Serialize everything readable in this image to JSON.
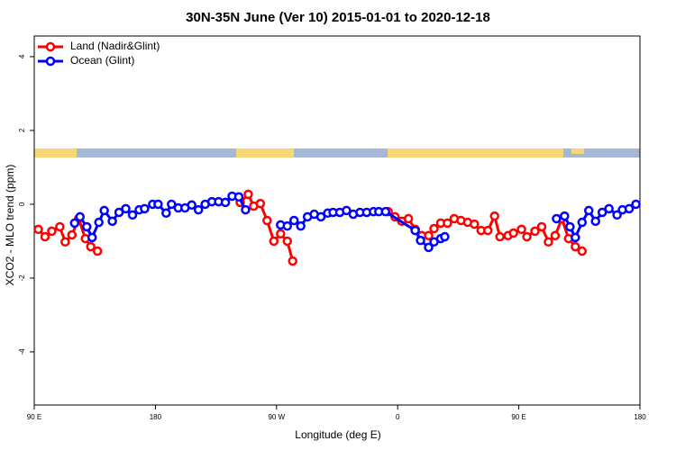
{
  "chart_data": {
    "type": "line",
    "title": "30N-35N June (Ver 10)   2015-01-01 to 2020-12-18",
    "x_label": "Longitude (deg E)",
    "y_label": "XCO2 - MLO trend (ppm)",
    "xlim": [
      90,
      540
    ],
    "ylim": [
      -5.44,
      4.56
    ],
    "xticks": [
      {
        "value": 90,
        "label": "90 E"
      },
      180,
      {
        "value": 270,
        "label": "90 W"
      },
      {
        "value": 360,
        "label": "0"
      },
      {
        "value": 450,
        "label": "90 E"
      },
      {
        "value": 540,
        "label": "180"
      }
    ],
    "yticks": [
      -4,
      -2,
      0,
      2,
      4
    ],
    "legend": "top-left",
    "series": [
      {
        "name": "Land (Nadir&Glint)",
        "color": "#ff0000",
        "x": [
          93,
          98,
          103,
          109,
          113,
          118,
          123,
          128,
          132,
          137,
          null,
          243,
          249,
          253,
          258,
          263,
          268,
          273,
          278,
          282,
          null,
          353,
          358,
          363,
          368,
          373,
          378,
          383,
          387,
          392,
          397,
          402,
          407,
          412,
          417,
          422,
          427,
          432,
          436,
          442,
          446,
          452,
          456,
          462,
          467,
          472,
          477,
          482,
          487,
          492,
          497
        ],
        "values": [
          -0.68,
          -0.88,
          -0.73,
          -0.61,
          -1.02,
          -0.83,
          -0.39,
          -0.93,
          -1.15,
          -1.27,
          null,
          0.05,
          0.27,
          -0.05,
          0.02,
          -0.44,
          -1.0,
          -0.8,
          -1.0,
          -1.54,
          null,
          -0.2,
          -0.34,
          -0.46,
          -0.39,
          -0.68,
          -0.85,
          -0.85,
          -0.66,
          -0.51,
          -0.51,
          -0.39,
          -0.44,
          -0.49,
          -0.54,
          -0.71,
          -0.71,
          -0.32,
          -0.88,
          -0.85,
          -0.78,
          -0.68,
          -0.88,
          -0.73,
          -0.61,
          -1.02,
          -0.85,
          -0.39,
          -0.93,
          -1.15,
          -1.27
        ]
      },
      {
        "name": "Ocean (Glint)",
        "color": "#0000ff",
        "x": [
          120,
          124,
          129,
          133,
          138,
          142,
          148,
          153,
          158,
          163,
          168,
          172,
          178,
          182,
          188,
          192,
          197,
          202,
          207,
          212,
          217,
          222,
          227,
          232,
          237,
          242,
          247,
          null,
          273,
          278,
          283,
          288,
          293,
          298,
          303,
          308,
          312,
          317,
          322,
          327,
          332,
          337,
          342,
          346,
          351,
          373,
          377,
          383,
          387,
          392,
          395,
          null,
          478,
          484,
          488,
          492,
          497,
          502,
          507,
          512,
          517,
          523,
          527,
          532,
          537
        ],
        "values": [
          -0.51,
          -0.34,
          -0.61,
          -0.9,
          -0.49,
          -0.17,
          -0.46,
          -0.22,
          -0.12,
          -0.29,
          -0.15,
          -0.12,
          0,
          0,
          -0.24,
          0,
          -0.1,
          -0.1,
          -0.02,
          -0.15,
          0,
          0.07,
          0.07,
          0.05,
          0.22,
          0.2,
          -0.15,
          null,
          -0.56,
          -0.59,
          -0.44,
          -0.59,
          -0.34,
          -0.27,
          -0.34,
          -0.24,
          -0.22,
          -0.22,
          -0.17,
          -0.27,
          -0.22,
          -0.22,
          -0.2,
          -0.2,
          -0.2,
          -0.71,
          -0.98,
          -1.17,
          -1.02,
          -0.93,
          -0.88,
          null,
          -0.39,
          -0.32,
          -0.61,
          -0.9,
          -0.49,
          -0.17,
          -0.46,
          -0.22,
          -0.12,
          -0.29,
          -0.15,
          -0.12,
          0
        ]
      }
    ]
  }
}
